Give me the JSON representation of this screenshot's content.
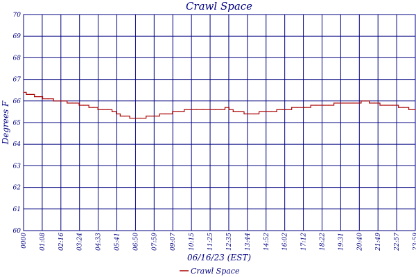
{
  "chart_data": {
    "type": "line",
    "title": "Crawl Space",
    "xlabel": "06/16/23 (EST)",
    "ylabel": "Degrees F",
    "ylim": [
      60,
      70
    ],
    "yticks": [
      "60",
      "61",
      "62",
      "63",
      "64",
      "65",
      "66",
      "67",
      "68",
      "69",
      "70"
    ],
    "xlim": [
      "00:00",
      "23:59"
    ],
    "xticks": [
      "0000",
      "01:08",
      "02:16",
      "03:24",
      "04:33",
      "05:41",
      "06:50",
      "07:59",
      "09:07",
      "10:15",
      "11:25",
      "12:35",
      "13:44",
      "14:52",
      "16:02",
      "17:12",
      "18:22",
      "19:31",
      "20:40",
      "21:49",
      "22:57",
      "23:59"
    ],
    "grid": true,
    "legend_position": "bottom-center",
    "colors": {
      "series": "#aa0000",
      "grid": "#000080",
      "text": "#000080"
    },
    "series": [
      {
        "name": "Crawl Space",
        "x": [
          "00:00",
          "00:10",
          "00:20",
          "00:40",
          "01:00",
          "01:10",
          "01:30",
          "01:50",
          "02:16",
          "02:40",
          "03:00",
          "03:24",
          "03:40",
          "04:00",
          "04:15",
          "04:33",
          "04:50",
          "05:10",
          "05:25",
          "05:41",
          "05:55",
          "06:10",
          "06:30",
          "06:50",
          "07:10",
          "07:30",
          "07:59",
          "08:20",
          "08:40",
          "09:07",
          "09:30",
          "09:50",
          "10:15",
          "10:35",
          "11:00",
          "11:25",
          "11:45",
          "12:05",
          "12:20",
          "12:35",
          "12:50",
          "13:10",
          "13:30",
          "13:44",
          "14:05",
          "14:25",
          "14:52",
          "15:10",
          "15:30",
          "15:50",
          "16:02",
          "16:25",
          "16:45",
          "17:12",
          "17:35",
          "17:55",
          "18:22",
          "18:40",
          "19:00",
          "19:31",
          "19:50",
          "20:10",
          "20:40",
          "20:55",
          "21:10",
          "21:30",
          "21:49",
          "22:10",
          "22:35",
          "22:57",
          "23:15",
          "23:35",
          "23:59"
        ],
        "y": [
          66.4,
          66.3,
          66.3,
          66.2,
          66.2,
          66.1,
          66.1,
          66.0,
          66.0,
          65.9,
          65.9,
          65.8,
          65.8,
          65.7,
          65.7,
          65.6,
          65.6,
          65.6,
          65.5,
          65.4,
          65.3,
          65.3,
          65.2,
          65.2,
          65.2,
          65.3,
          65.3,
          65.4,
          65.4,
          65.5,
          65.5,
          65.6,
          65.6,
          65.6,
          65.6,
          65.6,
          65.6,
          65.6,
          65.7,
          65.6,
          65.5,
          65.5,
          65.4,
          65.4,
          65.4,
          65.5,
          65.5,
          65.5,
          65.6,
          65.6,
          65.6,
          65.7,
          65.7,
          65.7,
          65.8,
          65.8,
          65.8,
          65.8,
          65.9,
          65.9,
          65.9,
          65.9,
          66.0,
          66.0,
          65.9,
          65.9,
          65.8,
          65.8,
          65.8,
          65.7,
          65.7,
          65.6,
          65.6
        ]
      }
    ]
  }
}
